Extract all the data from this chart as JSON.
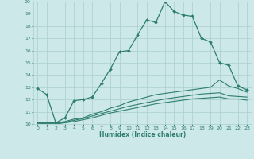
{
  "xlabel": "Humidex (Indice chaleur)",
  "background_color": "#cce8e8",
  "grid_color": "#aacece",
  "line_color": "#2e7d6e",
  "xlim": [
    -0.5,
    23.5
  ],
  "ylim": [
    10,
    20
  ],
  "xticks": [
    0,
    1,
    2,
    3,
    4,
    5,
    6,
    7,
    8,
    9,
    10,
    11,
    12,
    13,
    14,
    15,
    16,
    17,
    18,
    19,
    20,
    21,
    22,
    23
  ],
  "yticks": [
    10,
    11,
    12,
    13,
    14,
    15,
    16,
    17,
    18,
    19,
    20
  ],
  "line1_x": [
    0,
    1,
    2,
    3,
    4,
    5,
    6,
    7,
    8,
    9,
    10,
    11,
    12,
    13,
    14,
    15,
    16,
    17,
    18,
    19,
    20,
    21,
    22,
    23
  ],
  "line1_y": [
    12.9,
    12.4,
    10.1,
    10.5,
    11.9,
    12.0,
    12.2,
    13.3,
    14.5,
    15.9,
    16.0,
    17.3,
    18.5,
    18.3,
    20.0,
    19.2,
    18.9,
    18.8,
    17.0,
    16.7,
    15.0,
    14.8,
    13.1,
    12.8
  ],
  "line2_x": [
    0,
    1,
    2,
    3,
    4,
    5,
    6,
    7,
    8,
    9,
    10,
    11,
    12,
    13,
    14,
    15,
    16,
    17,
    18,
    19,
    20,
    21,
    22,
    23
  ],
  "line2_y": [
    10.1,
    10.1,
    10.1,
    10.2,
    10.4,
    10.5,
    10.8,
    11.0,
    11.3,
    11.5,
    11.8,
    12.0,
    12.2,
    12.4,
    12.5,
    12.6,
    12.7,
    12.8,
    12.9,
    13.0,
    13.6,
    13.1,
    12.9,
    12.6
  ],
  "line3_x": [
    0,
    1,
    2,
    3,
    4,
    5,
    6,
    7,
    8,
    9,
    10,
    11,
    12,
    13,
    14,
    15,
    16,
    17,
    18,
    19,
    20,
    21,
    22,
    23
  ],
  "line3_y": [
    10.05,
    10.05,
    10.05,
    10.15,
    10.3,
    10.45,
    10.65,
    10.85,
    11.05,
    11.25,
    11.45,
    11.6,
    11.75,
    11.9,
    12.05,
    12.15,
    12.25,
    12.35,
    12.45,
    12.5,
    12.55,
    12.3,
    12.25,
    12.2
  ],
  "line4_x": [
    0,
    1,
    2,
    3,
    4,
    5,
    6,
    7,
    8,
    9,
    10,
    11,
    12,
    13,
    14,
    15,
    16,
    17,
    18,
    19,
    20,
    21,
    22,
    23
  ],
  "line4_y": [
    10.0,
    10.0,
    10.0,
    10.1,
    10.2,
    10.35,
    10.5,
    10.7,
    10.9,
    11.05,
    11.2,
    11.35,
    11.5,
    11.65,
    11.75,
    11.85,
    11.95,
    12.05,
    12.1,
    12.15,
    12.2,
    12.05,
    12.05,
    11.95
  ]
}
